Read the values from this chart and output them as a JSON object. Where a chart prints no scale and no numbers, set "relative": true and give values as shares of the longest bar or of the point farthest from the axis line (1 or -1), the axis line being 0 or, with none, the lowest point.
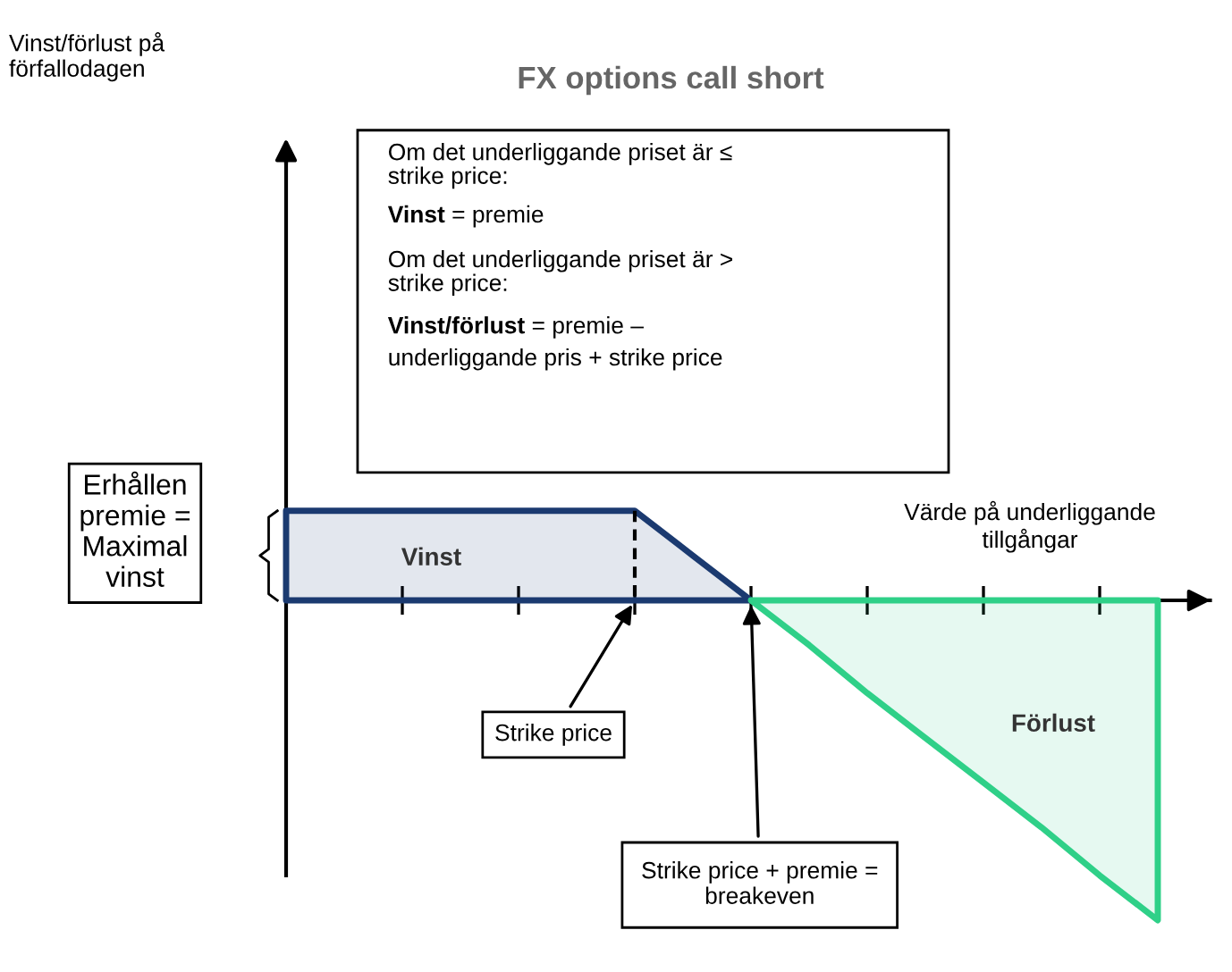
{
  "chart_data": {
    "type": "area",
    "relative": true,
    "title": "FX options call short",
    "xlabel": "Värde på underliggande\ntillgångar",
    "categories": [
      null,
      null,
      null,
      null,
      null,
      null,
      null,
      null,
      null,
      null,
      null,
      null,
      null,
      null,
      null,
      null,
      null
    ],
    "series": [
      {
        "color": "#1b3a70",
        "values": [
          0.28,
          0.28,
          0.28,
          0.28,
          0.28,
          0.28,
          0.28,
          0.14,
          0,
          null,
          null,
          null,
          null,
          null,
          null,
          null,
          null
        ]
      },
      {
        "color": "#2fd088",
        "values": [
          null,
          null,
          null,
          null,
          null,
          null,
          null,
          null,
          0,
          -0.14,
          -0.29,
          -0.43,
          -0.57,
          -0.71,
          -0.86,
          -1,
          null
        ]
      }
    ],
    "annotations": [
      "Om det underliggande priset är ≤\nstrike price:",
      "Vinst",
      "= premie",
      "Om det underliggande priset är >\nstrike price:",
      "Vinst/förlust",
      "= premie –",
      "underliggande pris + strike price",
      "Vinst",
      "Förlust",
      "Erhållen\npremie =\nMaximal\nvinst",
      "Strike price",
      "Strike price + premie =\nbreakeven",
      "Vinst/förlust på\nförfallodagen"
    ]
  }
}
